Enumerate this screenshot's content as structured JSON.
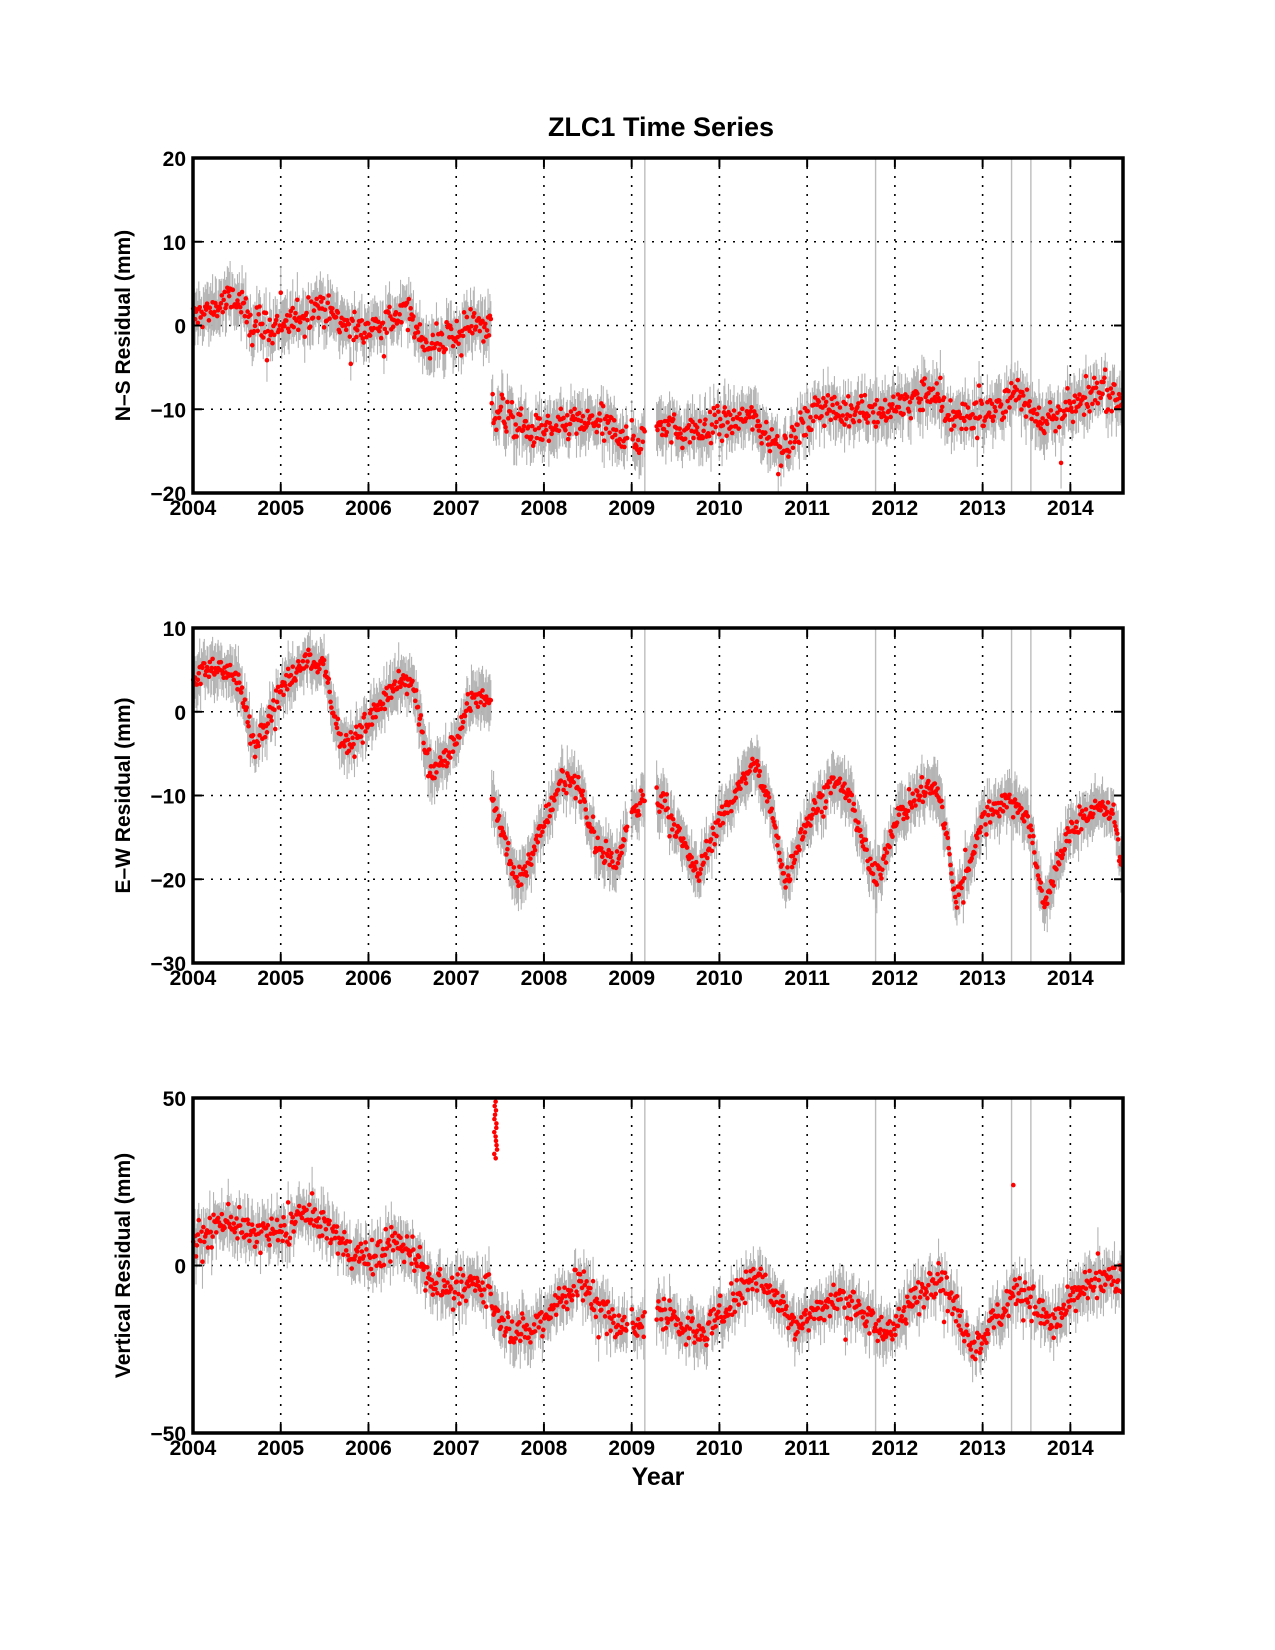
{
  "figure_title": "ZLC1 Time Series",
  "chart_data": [
    {
      "type": "scatter",
      "title": "ZLC1 Time Series",
      "xlabel": "",
      "ylabel": "N–S Residual (mm)",
      "xlim": [
        2004,
        2014.6
      ],
      "ylim": [
        -20,
        20
      ],
      "xticks": [
        "2004",
        "2005",
        "2006",
        "2007",
        "2008",
        "2009",
        "2010",
        "2011",
        "2012",
        "2013",
        "2014"
      ],
      "yticks": [
        -20,
        -10,
        0,
        10,
        20
      ],
      "ytick_labels": [
        "−20",
        "−10",
        "0",
        "10",
        "20"
      ],
      "grid": true,
      "marker_color": "#ff0000",
      "errorbar_color": "#b4b4b4",
      "trend": {
        "knots_x": [
          2004.0,
          2004.2,
          2004.45,
          2004.7,
          2004.9,
          2005.2,
          2005.45,
          2005.7,
          2005.9,
          2006.2,
          2006.45,
          2006.7,
          2006.9,
          2007.2,
          2007.4,
          2007.401,
          2007.6,
          2007.8,
          2008.0,
          2008.3,
          2008.6,
          2008.8,
          2009.0,
          2009.1,
          2009.35,
          2009.6,
          2009.8,
          2010.0,
          2010.2,
          2010.4,
          2010.55,
          2010.7,
          2010.85,
          2011.0,
          2011.2,
          2011.4,
          2011.6,
          2011.85,
          2012.0,
          2012.2,
          2012.4,
          2012.6,
          2012.8,
          2013.0,
          2013.2,
          2013.4,
          2013.6,
          2013.8,
          2014.0,
          2014.2,
          2014.4,
          2014.6
        ],
        "knots_y": [
          1,
          1.8,
          3.2,
          0.5,
          -0.8,
          0.8,
          2.8,
          0.3,
          -0.6,
          0.4,
          1.4,
          -2.8,
          -1.5,
          0.5,
          0,
          -10,
          -11,
          -12.5,
          -13,
          -11.5,
          -11.8,
          -12.5,
          -13.8,
          -14,
          -11.5,
          -13,
          -12.5,
          -11.5,
          -11.2,
          -11,
          -13,
          -14.8,
          -13.5,
          -11.5,
          -9.5,
          -10.5,
          -9.8,
          -10.5,
          -9.5,
          -9,
          -7.5,
          -10.5,
          -11,
          -10.8,
          -9.5,
          -8,
          -10.5,
          -11.2,
          -10,
          -8.5,
          -7.5,
          -9
        ]
      },
      "gaps": [
        [
          2008.95,
          2009.0
        ],
        [
          2009.15,
          2009.28
        ]
      ],
      "scatter_sd": 1.4,
      "errorbar_half": 2.5
    },
    {
      "type": "scatter",
      "title": "",
      "xlabel": "",
      "ylabel": "E–W Residual (mm)",
      "xlim": [
        2004,
        2014.6
      ],
      "ylim": [
        -30,
        10
      ],
      "xticks": [
        "2004",
        "2005",
        "2006",
        "2007",
        "2008",
        "2009",
        "2010",
        "2011",
        "2012",
        "2013",
        "2014"
      ],
      "yticks": [
        -30,
        -20,
        -10,
        0,
        10
      ],
      "ytick_labels": [
        "−30",
        "−20",
        "−10",
        "0",
        "10"
      ],
      "grid": true,
      "marker_color": "#ff0000",
      "errorbar_color": "#b4b4b4",
      "trend": {
        "knots_x": [
          2004.0,
          2004.3,
          2004.5,
          2004.7,
          2005.0,
          2005.3,
          2005.5,
          2005.7,
          2005.9,
          2006.3,
          2006.5,
          2006.7,
          2006.9,
          2007.2,
          2007.4,
          2007.401,
          2007.7,
          2007.9,
          2008.2,
          2008.4,
          2008.6,
          2008.85,
          2009.0,
          2009.15,
          2009.35,
          2009.55,
          2009.75,
          2010.0,
          2010.4,
          2010.6,
          2010.75,
          2011.0,
          2011.3,
          2011.5,
          2011.7,
          2011.8,
          2012.0,
          2012.3,
          2012.5,
          2012.7,
          2013.0,
          2013.3,
          2013.5,
          2013.7,
          2014.0,
          2014.3,
          2014.5,
          2014.6
        ],
        "knots_y": [
          4,
          5.5,
          4,
          -4,
          2.5,
          6.5,
          5,
          -4,
          -2.5,
          3,
          3.5,
          -7.5,
          -5.5,
          2,
          1,
          -10,
          -20.5,
          -16,
          -8,
          -9,
          -16,
          -18,
          -12,
          -10.5,
          -10,
          -15,
          -19.5,
          -13,
          -6,
          -12,
          -20.5,
          -13,
          -8,
          -10,
          -18,
          -20.5,
          -13,
          -9.5,
          -9,
          -23,
          -12.5,
          -10.5,
          -12,
          -23,
          -14,
          -11.5,
          -12,
          -20
        ]
      },
      "gaps": [
        [
          2008.95,
          2009.0
        ],
        [
          2009.15,
          2009.28
        ]
      ],
      "scatter_sd": 1.0,
      "errorbar_half": 2.5
    },
    {
      "type": "scatter",
      "title": "",
      "xlabel": "Year",
      "ylabel": "Vertical Residual (mm)",
      "xlim": [
        2004,
        2014.6
      ],
      "ylim": [
        -50,
        50
      ],
      "xticks": [
        "2004",
        "2005",
        "2006",
        "2007",
        "2008",
        "2009",
        "2010",
        "2011",
        "2012",
        "2013",
        "2014"
      ],
      "yticks": [
        -50,
        0,
        50
      ],
      "ytick_labels": [
        "−50",
        "0",
        "50"
      ],
      "grid": true,
      "marker_color": "#ff0000",
      "errorbar_color": "#b4b4b4",
      "trend": {
        "knots_x": [
          2004.0,
          2004.4,
          2004.7,
          2005.0,
          2005.3,
          2005.5,
          2005.8,
          2006.0,
          2006.3,
          2006.5,
          2006.7,
          2007.0,
          2007.2,
          2007.4,
          2007.401,
          2007.6,
          2007.85,
          2008.1,
          2008.4,
          2008.6,
          2008.8,
          2009.0,
          2009.35,
          2009.6,
          2009.8,
          2010.1,
          2010.4,
          2010.6,
          2010.9,
          2011.2,
          2011.4,
          2011.6,
          2011.8,
          2012.0,
          2012.3,
          2012.5,
          2012.7,
          2012.9,
          2013.1,
          2013.4,
          2013.6,
          2013.8,
          2014.1,
          2014.4,
          2014.6
        ],
        "knots_y": [
          8,
          14,
          9,
          10,
          16,
          12,
          4,
          2,
          7,
          5,
          -4,
          -8,
          -5,
          -6,
          -12,
          -18,
          -20,
          -12,
          -5,
          -10,
          -18,
          -19,
          -14,
          -18,
          -21,
          -12,
          -3,
          -8,
          -18,
          -12,
          -9,
          -12,
          -20,
          -18,
          -8,
          -2,
          -14,
          -25,
          -18,
          -6,
          -12,
          -18,
          -8,
          -4,
          -5
        ]
      },
      "gaps": [
        [
          2008.95,
          2009.0
        ],
        [
          2009.15,
          2009.28
        ]
      ],
      "scatter_sd": 3.5,
      "errorbar_half": 6,
      "outliers": [
        {
          "x": 2007.45,
          "y_from": 32,
          "y_to": 50
        },
        {
          "x": 2013.35,
          "y": 24
        }
      ]
    }
  ]
}
